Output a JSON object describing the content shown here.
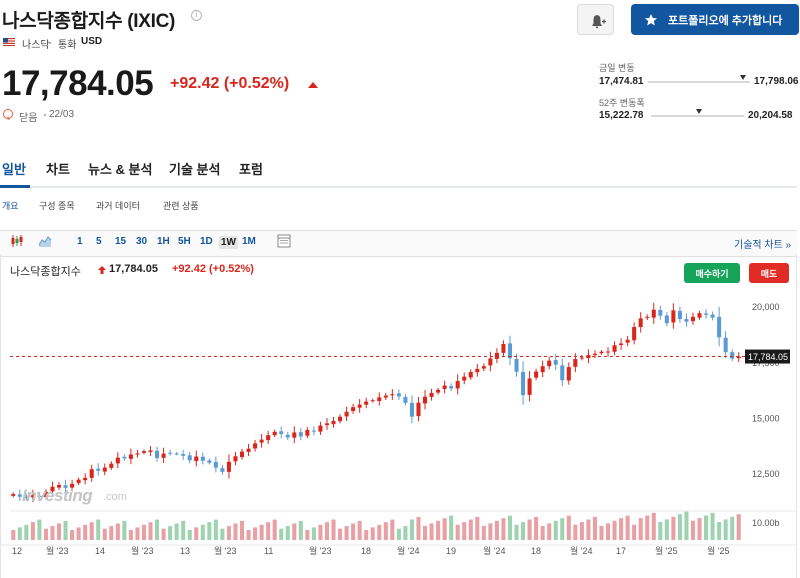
{
  "header": {
    "title": "나스닥종합지수 (IXIC)",
    "info_glyph": "i",
    "exchange": "나스닥",
    "currency_label": "통화",
    "currency": "USD",
    "alert_icon": "bell-plus-icon",
    "portfolio_button": "포트폴리오에 추가합니다"
  },
  "quote": {
    "price": "17,784.05",
    "change": "+92.42 (+0.52%)",
    "close_label": "닫음",
    "close_date": "22/03"
  },
  "ranges": {
    "day_label": "금일 변동",
    "day_low": "17,474.81",
    "day_high": "17,798.06",
    "day_position": 0.93,
    "week52_label": "52주 변동폭",
    "week52_low": "15,222.78",
    "week52_high": "20,204.58",
    "week52_position": 0.52
  },
  "tabs": [
    "일반",
    "차트",
    "뉴스 & 분석",
    "기술 분석",
    "포럼"
  ],
  "subtabs": [
    "개요",
    "구성 종목",
    "과거 데이터",
    "관련 상품"
  ],
  "toolbar": {
    "timeframes": [
      "1",
      "5",
      "15",
      "30",
      "1H",
      "5H",
      "1D",
      "1W",
      "1M"
    ],
    "active_timeframe": "1W",
    "advanced_chart": "기술적 차트 »"
  },
  "legend": {
    "name": "나스닥종합지수",
    "price": "17,784.05",
    "change": "+92.42 (+0.52%)",
    "buy": "매수하기",
    "sell": "매도"
  },
  "watermark": {
    "brand": "Investing",
    "domain": ".com"
  },
  "colors": {
    "up": "#d9261c",
    "down": "#5b9bd5",
    "vol_up": "#e8a0a4",
    "vol_down": "#9ed2b0",
    "accent": "#1256a0"
  },
  "chart_data": {
    "type": "candlestick",
    "timeframe": "1W",
    "y_ticks": [
      "20,000",
      "17,500",
      "15,000",
      "12,500"
    ],
    "y_tick_values": [
      20000,
      17500,
      15000,
      12500
    ],
    "ylim": [
      11200,
      21000
    ],
    "current_price_label": "17,784.05",
    "current_price": 17784.05,
    "volume_label": "10.00b",
    "x_ticks": [
      "12",
      "월 '23",
      "14",
      "월 '23",
      "13",
      "월 '23",
      "11",
      "월 '23",
      "18",
      "월 '24",
      "19",
      "월 '24",
      "18",
      "월 '24",
      "17",
      "월 '25",
      "월 '25"
    ],
    "closes": [
      11600,
      11480,
      11420,
      11550,
      11470,
      11700,
      11930,
      12010,
      11880,
      12060,
      12250,
      12330,
      12720,
      12650,
      12790,
      12970,
      13240,
      13210,
      13380,
      13430,
      13530,
      13560,
      13220,
      13420,
      13450,
      13400,
      13320,
      13120,
      13290,
      13100,
      13010,
      12790,
      12600,
      13050,
      13300,
      13510,
      13640,
      13880,
      14050,
      14250,
      14400,
      14300,
      14150,
      14370,
      14190,
      14480,
      14410,
      14680,
      14780,
      14890,
      15080,
      15300,
      15510,
      15620,
      15760,
      15820,
      15950,
      16030,
      16090,
      15990,
      15700,
      15080,
      15710,
      15980,
      16150,
      16290,
      16480,
      16350,
      16680,
      16880,
      17090,
      17230,
      17350,
      17700,
      17950,
      18350,
      17710,
      17100,
      16050,
      16800,
      17110,
      17350,
      17600,
      17420,
      16720,
      17310,
      17670,
      17740,
      17850,
      17910,
      18000,
      18010,
      18290,
      18370,
      18540,
      19110,
      19500,
      19570,
      19890,
      19620,
      19280,
      19860,
      19470,
      19350,
      19570,
      19730,
      19660,
      19530,
      18650,
      17980,
      17690,
      17780
    ]
  }
}
